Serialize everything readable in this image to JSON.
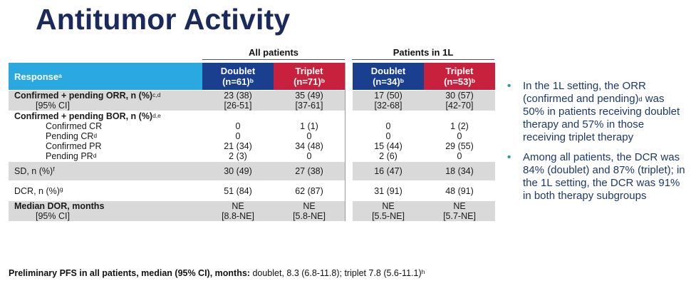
{
  "title": "Antitumor Activity",
  "groups": {
    "all": "All patients",
    "first_line": "Patients in 1L"
  },
  "header": {
    "response": "Response",
    "response_sup": "a",
    "doublet_all": "Doublet",
    "doublet_all_n": "(n=61)",
    "doublet_all_sup": "b",
    "triplet_all": "Triplet",
    "triplet_all_n": "(n=71)",
    "triplet_all_sup": "b",
    "doublet_1l": "Doublet",
    "doublet_1l_n": "(n=34)",
    "doublet_1l_sup": "b",
    "triplet_1l": "Triplet",
    "triplet_1l_n": "(n=53)",
    "triplet_1l_sup": "b"
  },
  "rows": {
    "orr": {
      "label": "Confirmed + pending ORR, n (%)",
      "sup": "c,d",
      "sub": "[95% CI]",
      "v": [
        "23 (38)",
        "35 (49)",
        "17 (50)",
        "30 (57)"
      ],
      "ci": [
        "[26-51]",
        "[37-61]",
        "[32-68]",
        "[42-70]"
      ]
    },
    "bor": {
      "label": "Confirmed + pending BOR, n (%)",
      "sup": "d,e",
      "items": [
        {
          "label": "Confirmed CR",
          "sup": "",
          "v": [
            "0",
            "1 (1)",
            "0",
            "1 (2)"
          ]
        },
        {
          "label": "Pending CR",
          "sup": "d",
          "v": [
            "0",
            "0",
            "0",
            "0"
          ]
        },
        {
          "label": "Confirmed PR",
          "sup": "",
          "v": [
            "21 (34)",
            "34 (48)",
            "15 (44)",
            "29 (55)"
          ]
        },
        {
          "label": "Pending PR",
          "sup": "d",
          "v": [
            "2 (3)",
            "0",
            "2 (6)",
            "0"
          ]
        }
      ]
    },
    "sd": {
      "label": "SD, n (%)",
      "sup": "f",
      "v": [
        "30 (49)",
        "27 (38)",
        "16 (47)",
        "18 (34)"
      ]
    },
    "dcr": {
      "label": "DCR, n (%)",
      "sup": "g",
      "v": [
        "51 (84)",
        "62 (87)",
        "31 (91)",
        "48 (91)"
      ]
    },
    "dor": {
      "label": "Median DOR, months",
      "sub": "[95% CI]",
      "v": [
        "NE",
        "NE",
        "NE",
        "NE"
      ],
      "ci": [
        "[8.8-NE]",
        "[5.8-NE]",
        "[5.5-NE]",
        "[5.7-NE]"
      ]
    }
  },
  "bullets": [
    {
      "a": "In the 1L setting, the ORR (confirmed and pending)",
      "sup": "d",
      "b": " was 50% in patients receiving doublet therapy and 57% in those receiving triplet therapy"
    },
    {
      "a": "Among all patients, the DCR was 84% (doublet) and 87% (triplet); in the 1L setting, the DCR was 91% in both therapy subgroups",
      "sup": "",
      "b": ""
    }
  ],
  "footer": {
    "bold": "Preliminary PFS in all patients, median (95% CI), months:",
    "text": " doublet, 8.3 (6.8-11.8); triplet 7.8 (5.6-11.1)",
    "sup": "h"
  },
  "colors": {
    "title": "#1b2a5c",
    "header_label": "#29a9e0",
    "doublet": "#1b3f8f",
    "triplet": "#c8213d",
    "shade": "#d9d9d9",
    "bullet_text": "#1b3a6b",
    "bullet_dot": "#2a9d9a"
  }
}
